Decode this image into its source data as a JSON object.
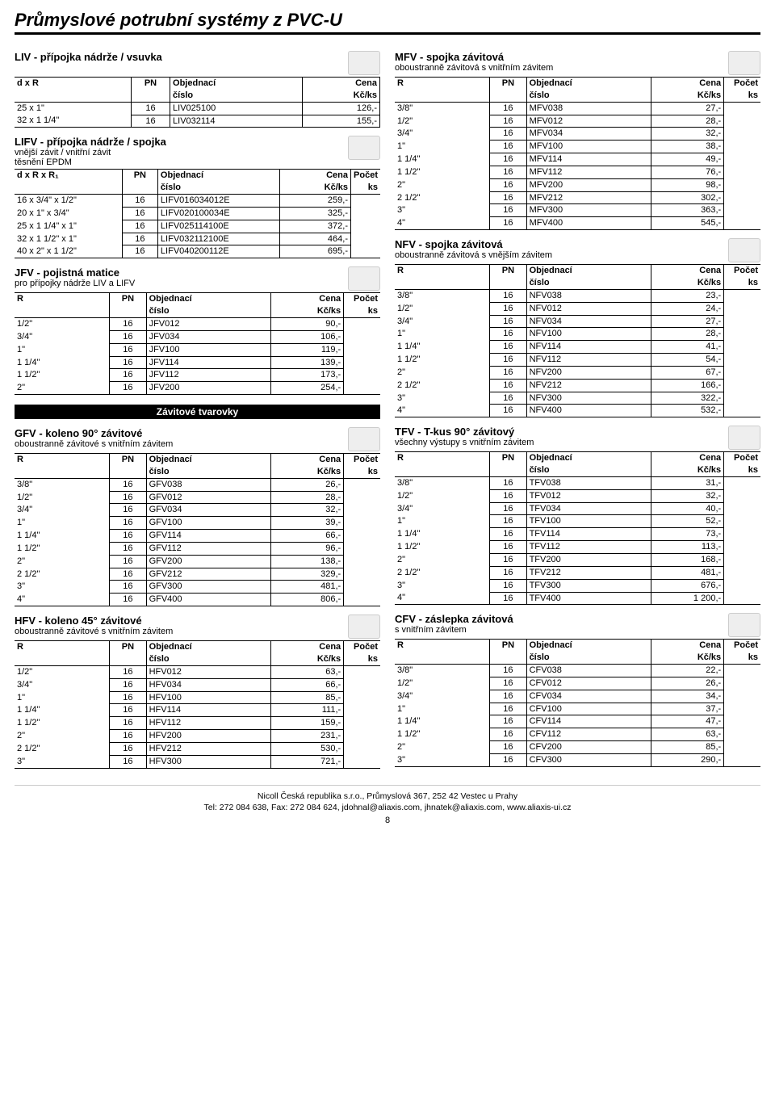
{
  "page_title": "Průmyslové potrubní systémy z PVC-U",
  "page_number": "8",
  "footer_line1": "Nicoll Česká republika s.r.o., Průmyslová 367, 252 42 Vestec u Prahy",
  "footer_line2": "Tel: 272 084 638, Fax: 272 084 624, jdohnal@aliaxis.com, jhnatek@aliaxis.com, www.aliaxis-ui.cz",
  "black_bar": "Závitové tvarovky",
  "hdr": {
    "R": "R",
    "d_x_R": "d x R",
    "d_x_R_x_R1": "d x R x R₁",
    "PN": "PN",
    "obj": "Objednací",
    "cislo": "číslo",
    "cena": "Cena",
    "kcks": "Kč/ks",
    "pocet": "Počet",
    "ks": "ks"
  },
  "sections": {
    "liv": {
      "title": "LIV - přípojka nádrže / vsuvka",
      "sub": "",
      "first_col": "d_x_R",
      "has_count": false,
      "rows": [
        [
          "25 x 1\"",
          "16",
          "LIV025100",
          "126,-"
        ],
        [
          "32 x 1 1/4\"",
          "16",
          "LIV032114",
          "155,-"
        ]
      ]
    },
    "lifv": {
      "title": "LIFV - přípojka nádrže / spojka",
      "sub": "vnější závit / vnitřní závit\ntěsnění EPDM",
      "first_col": "d_x_R_x_R1",
      "has_count": true,
      "rows": [
        [
          "16 x 3/4\" x 1/2\"",
          "16",
          "LIFV016034012E",
          "259,-",
          ""
        ],
        [
          "20 x 1\" x 3/4\"",
          "16",
          "LIFV020100034E",
          "325,-",
          ""
        ],
        [
          "25 x 1 1/4\" x 1\"",
          "16",
          "LIFV025114100E",
          "372,-",
          ""
        ],
        [
          "32 x 1 1/2\" x 1\"",
          "16",
          "LIFV032112100E",
          "464,-",
          ""
        ],
        [
          "40 x 2\" x 1 1/2\"",
          "16",
          "LIFV040200112E",
          "695,-",
          ""
        ]
      ]
    },
    "jfv": {
      "title": "JFV - pojistná matice",
      "sub": "pro přípojky nádrže LIV a LIFV",
      "first_col": "R",
      "has_count": true,
      "rows": [
        [
          "1/2\"",
          "16",
          "JFV012",
          "90,-",
          ""
        ],
        [
          "3/4\"",
          "16",
          "JFV034",
          "106,-",
          ""
        ],
        [
          "1\"",
          "16",
          "JFV100",
          "119,-",
          ""
        ],
        [
          "1 1/4\"",
          "16",
          "JFV114",
          "139,-",
          ""
        ],
        [
          "1 1/2\"",
          "16",
          "JFV112",
          "173,-",
          ""
        ],
        [
          "2\"",
          "16",
          "JFV200",
          "254,-",
          ""
        ]
      ]
    },
    "gfv": {
      "title": "GFV - koleno 90° závitové",
      "sub": "oboustranně závitové s vnitřním závitem",
      "first_col": "R",
      "has_count": true,
      "rows": [
        [
          "3/8\"",
          "16",
          "GFV038",
          "26,-",
          ""
        ],
        [
          "1/2\"",
          "16",
          "GFV012",
          "28,-",
          ""
        ],
        [
          "3/4\"",
          "16",
          "GFV034",
          "32,-",
          ""
        ],
        [
          "1\"",
          "16",
          "GFV100",
          "39,-",
          ""
        ],
        [
          "1 1/4\"",
          "16",
          "GFV114",
          "66,-",
          ""
        ],
        [
          "1 1/2\"",
          "16",
          "GFV112",
          "96,-",
          ""
        ],
        [
          "2\"",
          "16",
          "GFV200",
          "138,-",
          ""
        ],
        [
          "2 1/2\"",
          "16",
          "GFV212",
          "329,-",
          ""
        ],
        [
          "3\"",
          "16",
          "GFV300",
          "481,-",
          ""
        ],
        [
          "4\"",
          "16",
          "GFV400",
          "806,-",
          ""
        ]
      ]
    },
    "hfv": {
      "title": "HFV - koleno 45° závitové",
      "sub": "oboustranně závitové s vnitřním závitem",
      "first_col": "R",
      "has_count": true,
      "rows": [
        [
          "1/2\"",
          "16",
          "HFV012",
          "63,-",
          ""
        ],
        [
          "3/4\"",
          "16",
          "HFV034",
          "66,-",
          ""
        ],
        [
          "1\"",
          "16",
          "HFV100",
          "85,-",
          ""
        ],
        [
          "1 1/4\"",
          "16",
          "HFV114",
          "111,-",
          ""
        ],
        [
          "1 1/2\"",
          "16",
          "HFV112",
          "159,-",
          ""
        ],
        [
          "2\"",
          "16",
          "HFV200",
          "231,-",
          ""
        ],
        [
          "2 1/2\"",
          "16",
          "HFV212",
          "530,-",
          ""
        ],
        [
          "3\"",
          "16",
          "HFV300",
          "721,-",
          ""
        ]
      ]
    },
    "mfv": {
      "title": "MFV - spojka závitová",
      "sub": "oboustranně závitová s vnitřním závitem",
      "first_col": "R",
      "has_count": true,
      "rows": [
        [
          "3/8\"",
          "16",
          "MFV038",
          "27,-",
          ""
        ],
        [
          "1/2\"",
          "16",
          "MFV012",
          "28,-",
          ""
        ],
        [
          "3/4\"",
          "16",
          "MFV034",
          "32,-",
          ""
        ],
        [
          "1\"",
          "16",
          "MFV100",
          "38,-",
          ""
        ],
        [
          "1 1/4\"",
          "16",
          "MFV114",
          "49,-",
          ""
        ],
        [
          "1 1/2\"",
          "16",
          "MFV112",
          "76,-",
          ""
        ],
        [
          "2\"",
          "16",
          "MFV200",
          "98,-",
          ""
        ],
        [
          "2 1/2\"",
          "16",
          "MFV212",
          "302,-",
          ""
        ],
        [
          "3\"",
          "16",
          "MFV300",
          "363,-",
          ""
        ],
        [
          "4\"",
          "16",
          "MFV400",
          "545,-",
          ""
        ]
      ]
    },
    "nfv": {
      "title": "NFV - spojka závitová",
      "sub": "oboustranně závitová s vnějším závitem",
      "first_col": "R",
      "has_count": true,
      "rows": [
        [
          "3/8\"",
          "16",
          "NFV038",
          "23,-",
          ""
        ],
        [
          "1/2\"",
          "16",
          "NFV012",
          "24,-",
          ""
        ],
        [
          "3/4\"",
          "16",
          "NFV034",
          "27,-",
          ""
        ],
        [
          "1\"",
          "16",
          "NFV100",
          "28,-",
          ""
        ],
        [
          "1 1/4\"",
          "16",
          "NFV114",
          "41,-",
          ""
        ],
        [
          "1 1/2\"",
          "16",
          "NFV112",
          "54,-",
          ""
        ],
        [
          "2\"",
          "16",
          "NFV200",
          "67,-",
          ""
        ],
        [
          "2 1/2\"",
          "16",
          "NFV212",
          "166,-",
          ""
        ],
        [
          "3\"",
          "16",
          "NFV300",
          "322,-",
          ""
        ],
        [
          "4\"",
          "16",
          "NFV400",
          "532,-",
          ""
        ]
      ]
    },
    "tfv": {
      "title": "TFV - T-kus 90° závitový",
      "sub": "všechny výstupy s vnitřním závitem",
      "first_col": "R",
      "has_count": true,
      "rows": [
        [
          "3/8\"",
          "16",
          "TFV038",
          "31,-",
          ""
        ],
        [
          "1/2\"",
          "16",
          "TFV012",
          "32,-",
          ""
        ],
        [
          "3/4\"",
          "16",
          "TFV034",
          "40,-",
          ""
        ],
        [
          "1\"",
          "16",
          "TFV100",
          "52,-",
          ""
        ],
        [
          "1 1/4\"",
          "16",
          "TFV114",
          "73,-",
          ""
        ],
        [
          "1 1/2\"",
          "16",
          "TFV112",
          "113,-",
          ""
        ],
        [
          "2\"",
          "16",
          "TFV200",
          "168,-",
          ""
        ],
        [
          "2 1/2\"",
          "16",
          "TFV212",
          "481,-",
          ""
        ],
        [
          "3\"",
          "16",
          "TFV300",
          "676,-",
          ""
        ],
        [
          "4\"",
          "16",
          "TFV400",
          "1 200,-",
          ""
        ]
      ]
    },
    "cfv": {
      "title": "CFV - záslepka závitová",
      "sub": "s vnitřním závitem",
      "first_col": "R",
      "has_count": true,
      "rows": [
        [
          "3/8\"",
          "16",
          "CFV038",
          "22,-",
          ""
        ],
        [
          "1/2\"",
          "16",
          "CFV012",
          "26,-",
          ""
        ],
        [
          "3/4\"",
          "16",
          "CFV034",
          "34,-",
          ""
        ],
        [
          "1\"",
          "16",
          "CFV100",
          "37,-",
          ""
        ],
        [
          "1 1/4\"",
          "16",
          "CFV114",
          "47,-",
          ""
        ],
        [
          "1 1/2\"",
          "16",
          "CFV112",
          "63,-",
          ""
        ],
        [
          "2\"",
          "16",
          "CFV200",
          "85,-",
          ""
        ],
        [
          "3\"",
          "16",
          "CFV300",
          "290,-",
          ""
        ]
      ]
    }
  },
  "left_order": [
    "liv",
    "lifv",
    "jfv",
    "__blackbar__",
    "gfv",
    "hfv"
  ],
  "right_order": [
    "mfv",
    "nfv",
    "tfv",
    "cfv"
  ]
}
